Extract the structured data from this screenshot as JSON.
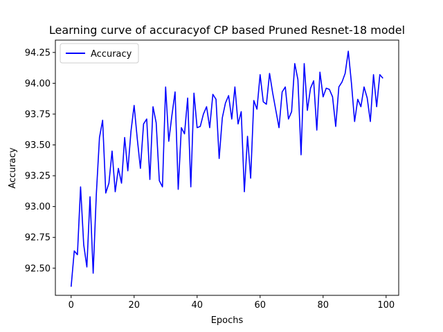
{
  "chart_data": {
    "type": "line",
    "title": "Learning curve of accuracyof CP based Pruned Resnet-18 model",
    "xlabel": "Epochs",
    "ylabel": "Accuracy",
    "xlim": [
      -5,
      104
    ],
    "ylim": [
      92.28,
      94.35
    ],
    "xticks": [
      0,
      20,
      40,
      60,
      80,
      100
    ],
    "yticks": [
      92.5,
      92.75,
      93.0,
      93.25,
      93.5,
      93.75,
      94.0,
      94.25
    ],
    "ytick_labels": [
      "92.50",
      "92.75",
      "93.00",
      "93.25",
      "93.50",
      "93.75",
      "94.00",
      "94.25"
    ],
    "legend_position": "top-left",
    "grid": false,
    "series": [
      {
        "name": "Accuracy",
        "color": "#0000ff",
        "x": [
          0,
          1,
          2,
          3,
          4,
          5,
          6,
          7,
          8,
          9,
          10,
          11,
          12,
          13,
          14,
          15,
          16,
          17,
          18,
          19,
          20,
          21,
          22,
          23,
          24,
          25,
          26,
          27,
          28,
          29,
          30,
          31,
          32,
          33,
          34,
          35,
          36,
          37,
          38,
          39,
          40,
          41,
          42,
          43,
          44,
          45,
          46,
          47,
          48,
          49,
          50,
          51,
          52,
          53,
          54,
          55,
          56,
          57,
          58,
          59,
          60,
          61,
          62,
          63,
          64,
          65,
          66,
          67,
          68,
          69,
          70,
          71,
          72,
          73,
          74,
          75,
          76,
          77,
          78,
          79,
          80,
          81,
          82,
          83,
          84,
          85,
          86,
          87,
          88,
          89,
          90,
          91,
          92,
          93,
          94,
          95,
          96,
          97,
          98,
          99
        ],
        "values": [
          92.35,
          92.64,
          92.61,
          93.16,
          92.69,
          92.51,
          93.08,
          92.46,
          93.1,
          93.56,
          93.7,
          93.11,
          93.19,
          93.45,
          93.12,
          93.31,
          93.19,
          93.56,
          93.29,
          93.61,
          93.82,
          93.55,
          93.31,
          93.67,
          93.71,
          93.22,
          93.81,
          93.68,
          93.21,
          93.16,
          93.97,
          93.53,
          93.74,
          93.93,
          93.14,
          93.64,
          93.59,
          93.88,
          93.16,
          93.92,
          93.64,
          93.65,
          93.75,
          93.81,
          93.64,
          93.91,
          93.87,
          93.39,
          93.72,
          93.84,
          93.9,
          93.71,
          93.97,
          93.67,
          93.77,
          93.12,
          93.57,
          93.23,
          93.86,
          93.79,
          94.07,
          93.85,
          93.83,
          94.08,
          93.92,
          93.78,
          93.64,
          93.93,
          93.97,
          93.71,
          93.77,
          94.16,
          94.03,
          93.42,
          94.16,
          93.78,
          93.96,
          94.02,
          93.62,
          94.09,
          93.89,
          93.96,
          93.95,
          93.89,
          93.65,
          93.97,
          94.01,
          94.08,
          94.26,
          94.0,
          93.69,
          93.87,
          93.81,
          93.97,
          93.88,
          93.69,
          94.07,
          93.81,
          94.07,
          94.04
        ]
      }
    ]
  }
}
